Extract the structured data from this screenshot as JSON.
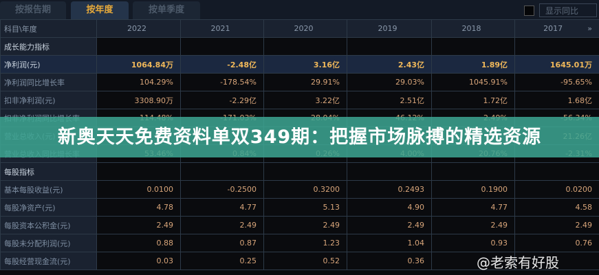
{
  "tabs": [
    "按报告期",
    "按年度",
    "按单季度"
  ],
  "active_tab": 1,
  "show_yoy_label": "显示同比",
  "header": {
    "label": "科目\\年度",
    "years": [
      "2022",
      "2021",
      "2020",
      "2019",
      "2018",
      "2017"
    ],
    "more_icon": "double-chevron-right-icon"
  },
  "rows": [
    {
      "label": "成长能力指标",
      "type": "section",
      "values": [
        "",
        "",
        "",
        "",
        "",
        ""
      ]
    },
    {
      "label": "净利润(元)",
      "type": "highlight",
      "values": [
        "1064.84万",
        "-2.48亿",
        "3.16亿",
        "2.43亿",
        "1.89亿",
        "1645.01万"
      ]
    },
    {
      "label": "净利润同比增长率",
      "values": [
        "104.29%",
        "-178.54%",
        "29.91%",
        "29.03%",
        "1045.91%",
        "-95.65%"
      ]
    },
    {
      "label": "扣非净利润(元)",
      "values": [
        "3308.90万",
        "-2.29亿",
        "3.22亿",
        "2.51亿",
        "1.72亿",
        "1.68亿"
      ]
    },
    {
      "label": "扣非净利润同比增长率",
      "values": [
        "114.48%",
        "-171.03%",
        "28.04%",
        "46.12%",
        "2.49%",
        "-56.34%"
      ]
    },
    {
      "label": "营业总收入(元)",
      "values": [
        "",
        "",
        "",
        "",
        "",
        "21.26亿"
      ]
    },
    {
      "label": "营业总收入同比增长率",
      "values": [
        "53.46%",
        "0.84%",
        "0.26%",
        "4.00%",
        "20.76%",
        "-2.31%"
      ]
    },
    {
      "label": "每股指标",
      "type": "section",
      "values": [
        "",
        "",
        "",
        "",
        "",
        ""
      ]
    },
    {
      "label": "基本每股收益(元)",
      "values": [
        "0.0100",
        "-0.2500",
        "0.3200",
        "0.2493",
        "0.1900",
        "0.0200"
      ]
    },
    {
      "label": "每股净资产(元)",
      "values": [
        "4.78",
        "4.77",
        "5.13",
        "4.90",
        "4.77",
        "4.58"
      ]
    },
    {
      "label": "每股资本公积金(元)",
      "values": [
        "2.49",
        "2.49",
        "2.49",
        "2.49",
        "2.49",
        "2.49"
      ]
    },
    {
      "label": "每股未分配利润(元)",
      "values": [
        "0.88",
        "0.87",
        "1.23",
        "1.04",
        "0.93",
        "0.76"
      ]
    },
    {
      "label": "每股经营现金流(元)",
      "values": [
        "0.03",
        "0.25",
        "0.52",
        "0.36",
        "",
        ""
      ]
    }
  ],
  "banner": "新奥天天免费资料单双349期：把握市场脉搏的精选资源",
  "watermark": "@老索有好股"
}
